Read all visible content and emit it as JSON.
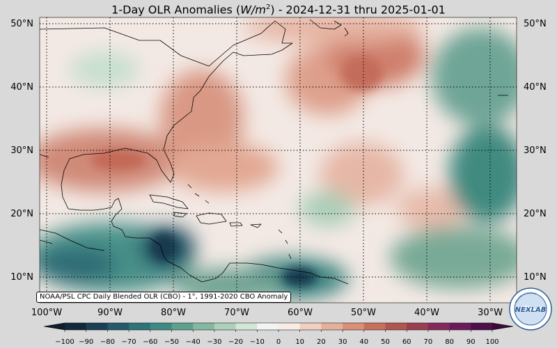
{
  "title": {
    "prefix": "1-Day OLR Anomalies (",
    "unit_base": "W/m",
    "unit_exp": "2",
    "suffix": ") - 2024-12-31 thru 2025-01-01"
  },
  "map": {
    "projection": "plate carrée",
    "lon_range": [
      -100,
      -25
    ],
    "lat_range": [
      5,
      51
    ],
    "gridlines": "dotted",
    "lat_labels": [
      "50°N",
      "40°N",
      "30°N",
      "20°N",
      "10°N"
    ],
    "lon_labels": [
      "100°W",
      "90°W",
      "80°W",
      "70°W",
      "60°W",
      "50°W",
      "40°W",
      "30°W"
    ]
  },
  "credit": "NOAA/PSL CPC Daily Blended OLR (CBO) - 1°, 1991-2020 CBO Anomaly",
  "colorbar": {
    "min": -100,
    "max": 100,
    "step": 10,
    "extend": "both",
    "tick_labels": [
      "−100",
      "−90",
      "−80",
      "−70",
      "−60",
      "−50",
      "−40",
      "−30",
      "−20",
      "−10",
      "0",
      "10",
      "20",
      "30",
      "40",
      "50",
      "60",
      "70",
      "80",
      "90",
      "100"
    ],
    "colors": [
      "#13293a",
      "#1b3f55",
      "#245a6b",
      "#2d7378",
      "#3d8a82",
      "#5da08e",
      "#84b8a2",
      "#acd1ba",
      "#d2e6d8",
      "#f2f4f2",
      "#f8ece6",
      "#efd0c1",
      "#e5b09b",
      "#d98f78",
      "#c9705d",
      "#b0554f",
      "#9a3e4f",
      "#84295b",
      "#6b1a5c",
      "#4e1048"
    ],
    "under_color": "#101c2a",
    "over_color": "#3a0a36"
  },
  "logo": {
    "text": "NEXLAB",
    "ring_text": "COLLEGE OF DUPAGE"
  }
}
